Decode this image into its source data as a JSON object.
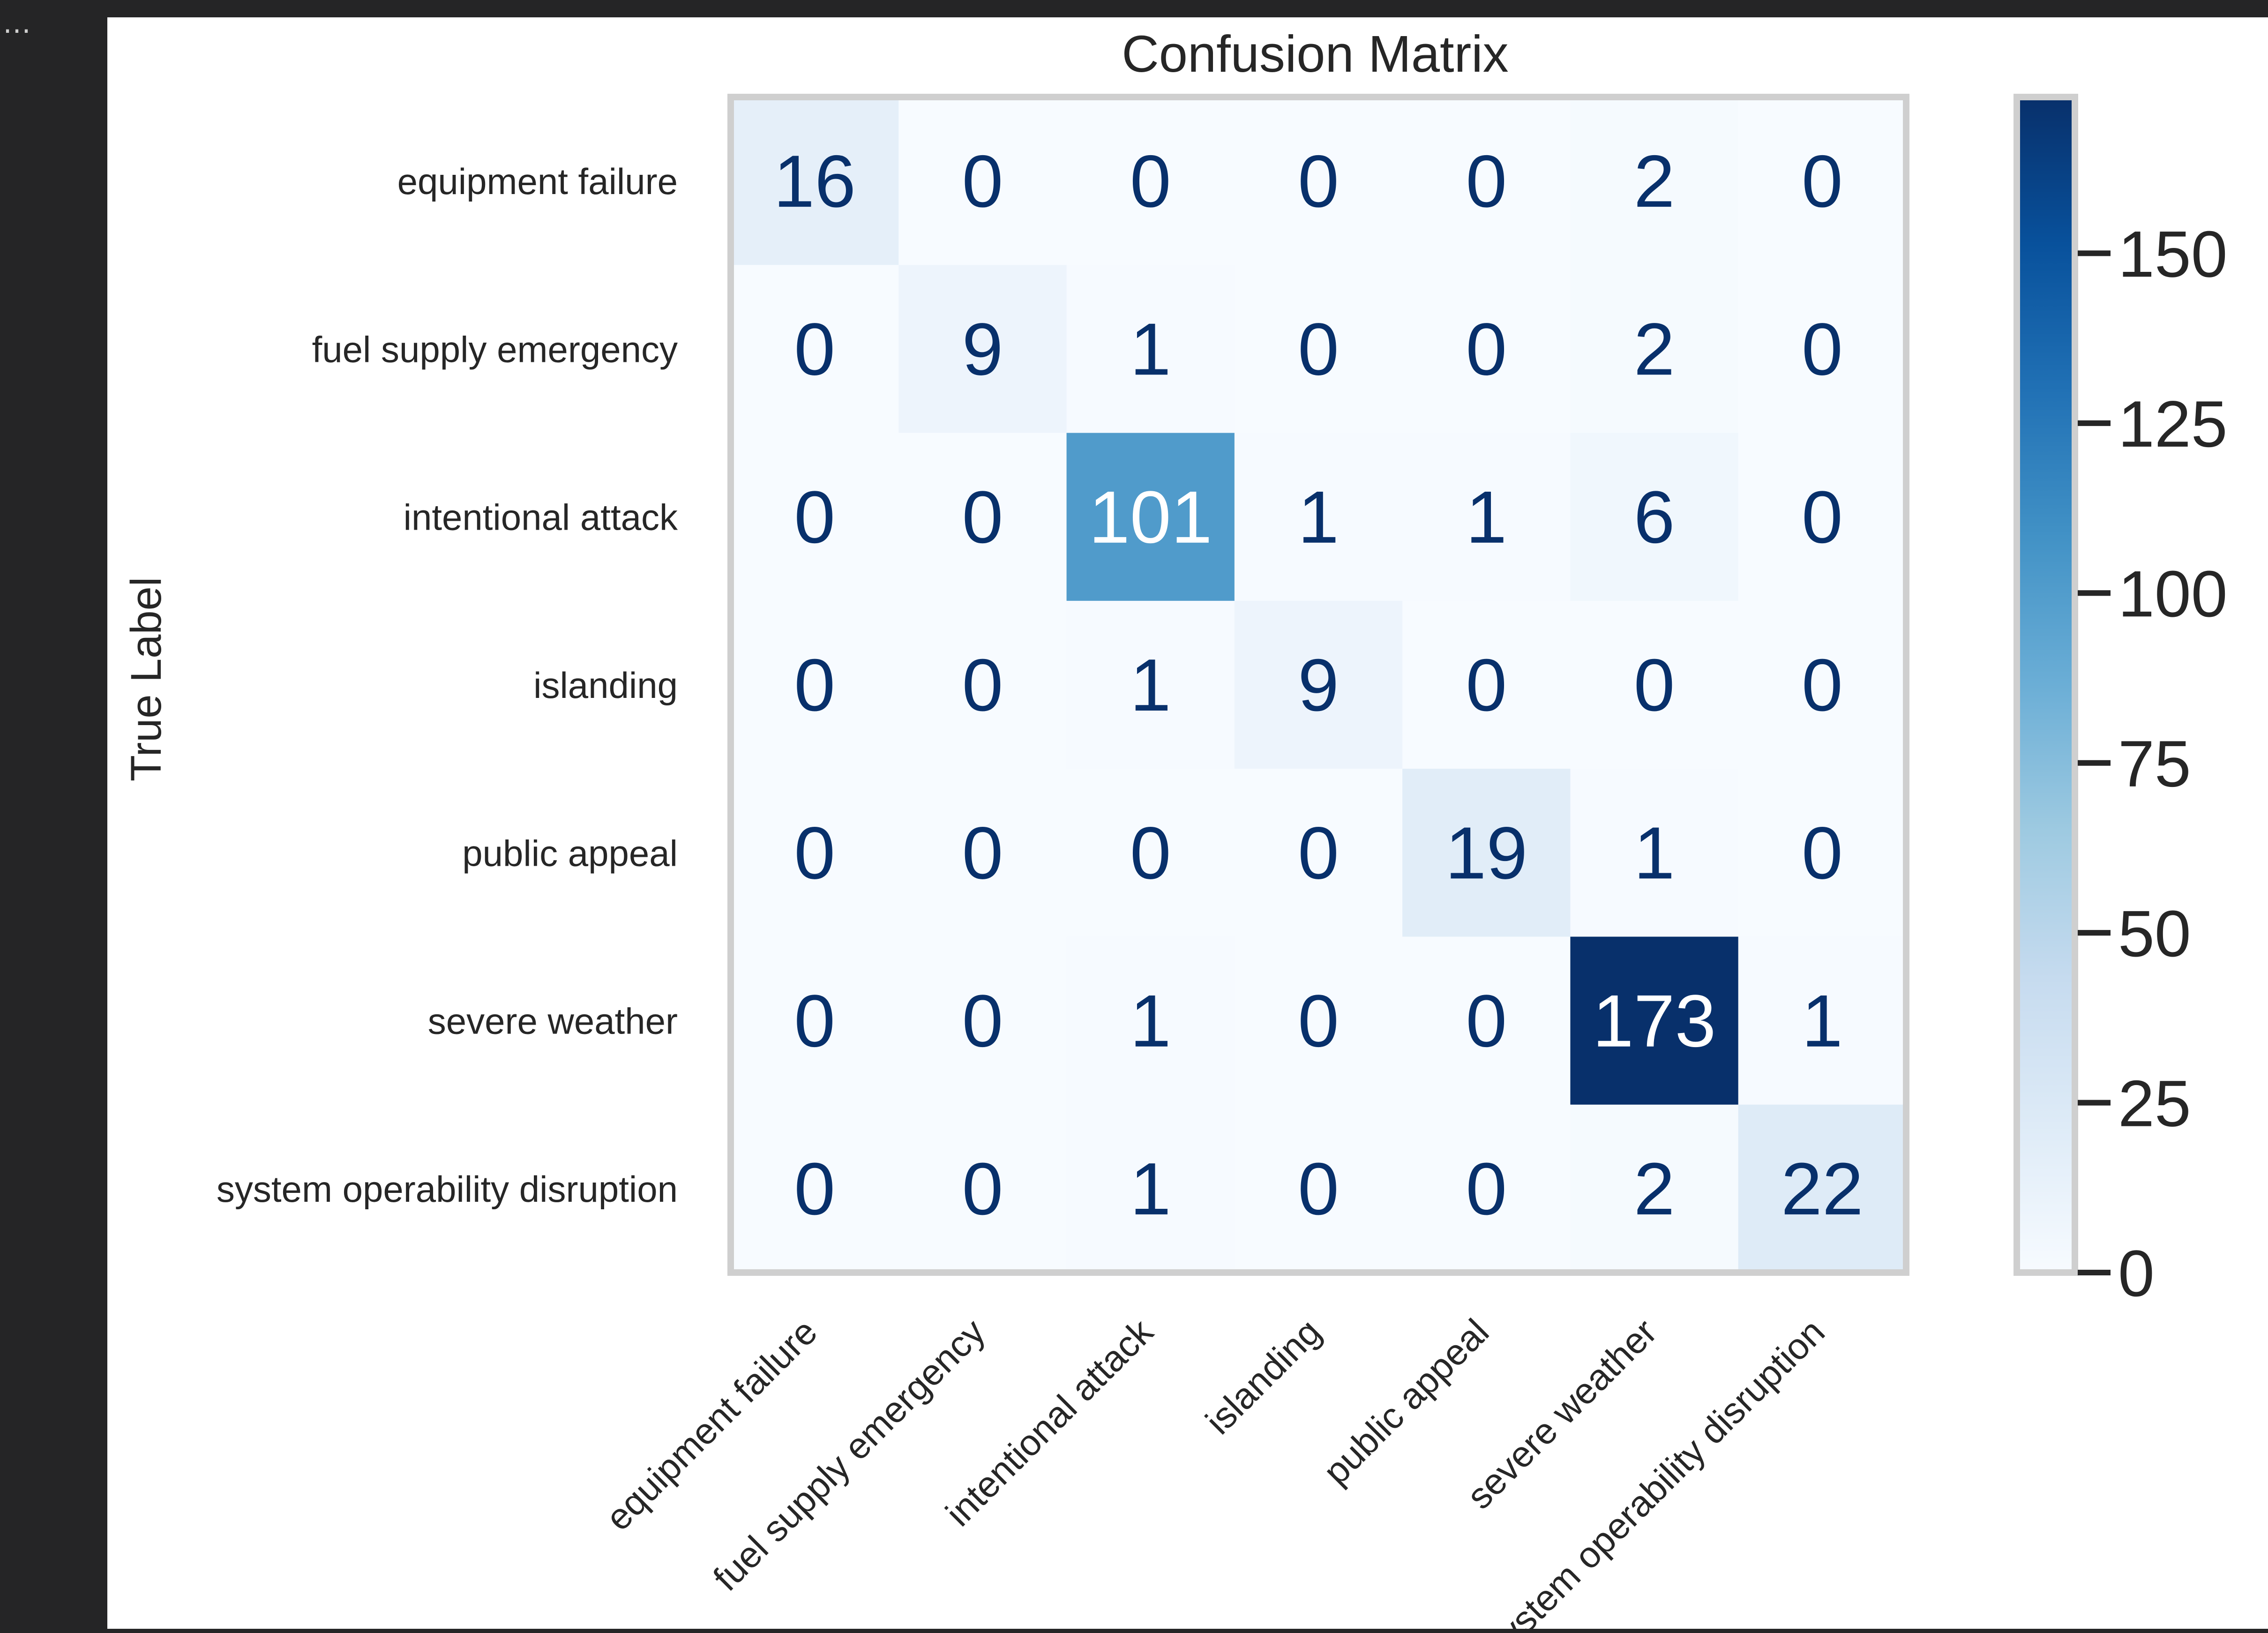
{
  "window": {
    "overflow_menu": "…"
  },
  "colors": {
    "window_bg": "#252526",
    "panel_bg": "#ffffff",
    "frame": "#cfcfcf",
    "text": "#262626",
    "colormap": "Blues",
    "cmap_low": "#f7fbff",
    "cmap_high": "#08306b",
    "text_dark": "#08306b",
    "text_light": "#ffffff"
  },
  "chart_data": {
    "type": "heatmap",
    "title": "Confusion Matrix",
    "xlabel": "",
    "ylabel": "True Label",
    "x_tick_labels": [
      "equipment failure",
      "fuel supply emergency",
      "intentional attack",
      "islanding",
      "public appeal",
      "severe weather",
      "system operability disruption"
    ],
    "y_tick_labels": [
      "equipment failure",
      "fuel supply emergency",
      "intentional attack",
      "islanding",
      "public appeal",
      "severe weather",
      "system operability disruption"
    ],
    "matrix": [
      [
        16,
        0,
        0,
        0,
        0,
        2,
        0
      ],
      [
        0,
        9,
        1,
        0,
        0,
        2,
        0
      ],
      [
        0,
        0,
        101,
        1,
        1,
        6,
        0
      ],
      [
        0,
        0,
        1,
        9,
        0,
        0,
        0
      ],
      [
        0,
        0,
        0,
        0,
        19,
        1,
        0
      ],
      [
        0,
        0,
        1,
        0,
        0,
        173,
        1
      ],
      [
        0,
        0,
        1,
        0,
        0,
        2,
        22
      ]
    ],
    "colorbar": {
      "min": 0,
      "max": 173,
      "ticks": [
        0,
        25,
        50,
        75,
        100,
        125,
        150
      ]
    },
    "grid": false
  }
}
